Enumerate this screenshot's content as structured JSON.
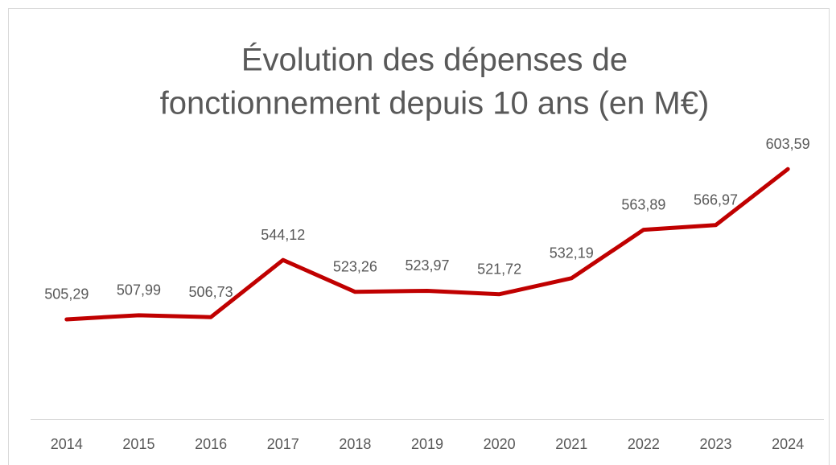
{
  "chart_data": {
    "type": "line",
    "title": [
      "Évolution des dépenses de",
      "fonctionnement depuis 10 ans (en M€)"
    ],
    "categories": [
      "2014",
      "2015",
      "2016",
      "2017",
      "2018",
      "2019",
      "2020",
      "2021",
      "2022",
      "2023",
      "2024"
    ],
    "values": [
      505.29,
      507.99,
      506.73,
      544.12,
      523.26,
      523.97,
      521.72,
      532.19,
      563.89,
      566.97,
      603.59
    ],
    "value_labels": [
      "505,29",
      "507,99",
      "506,73",
      "544,12",
      "523,26",
      "523,97",
      "521,72",
      "532,19",
      "563,89",
      "566,97",
      "603,59"
    ],
    "color": "#c00000",
    "ylim": [
      440,
      620
    ]
  }
}
